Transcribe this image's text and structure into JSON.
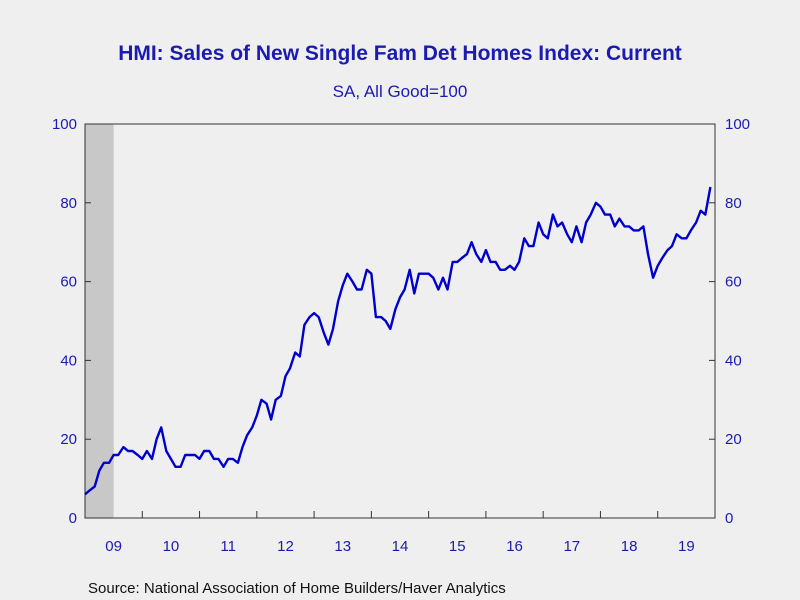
{
  "chart_data": {
    "type": "line",
    "title": "HMI: Sales of New Single Fam Det Homes Index: Current",
    "subtitle": "SA, All Good=100",
    "source": "Source:  National Association of Home Builders/Haver Analytics",
    "ylim": [
      0,
      100
    ],
    "yticks": [
      0,
      20,
      40,
      60,
      80,
      100
    ],
    "ytick_labels": [
      "0",
      "20",
      "40",
      "60",
      "80",
      "100"
    ],
    "xlim": [
      2009.0,
      2020.0
    ],
    "xtick_labels": [
      "09",
      "10",
      "11",
      "12",
      "13",
      "14",
      "15",
      "16",
      "17",
      "18",
      "19"
    ],
    "recession": {
      "start": 2009.0,
      "end": 2009.5,
      "color": "#c8c8c8"
    },
    "line_color": "#0000cc",
    "grid": false,
    "series": [
      {
        "x": [
          2009.0,
          2009.08,
          2009.17,
          2009.25,
          2009.33,
          2009.42,
          2009.5,
          2009.58,
          2009.67,
          2009.75,
          2009.83,
          2009.92,
          2010.0,
          2010.08,
          2010.17,
          2010.25,
          2010.33,
          2010.42,
          2010.5,
          2010.58,
          2010.67,
          2010.75,
          2010.83,
          2010.92,
          2011.0,
          2011.08,
          2011.17,
          2011.25,
          2011.33,
          2011.42,
          2011.5,
          2011.58,
          2011.67,
          2011.75,
          2011.83,
          2011.92,
          2012.0,
          2012.08,
          2012.17,
          2012.25,
          2012.33,
          2012.42,
          2012.5,
          2012.58,
          2012.67,
          2012.75,
          2012.83,
          2012.92,
          2013.0,
          2013.08,
          2013.17,
          2013.25,
          2013.33,
          2013.42,
          2013.5,
          2013.58,
          2013.67,
          2013.75,
          2013.83,
          2013.92,
          2014.0,
          2014.08,
          2014.17,
          2014.25,
          2014.33,
          2014.42,
          2014.5,
          2014.58,
          2014.67,
          2014.75,
          2014.83,
          2014.92,
          2015.0,
          2015.08,
          2015.17,
          2015.25,
          2015.33,
          2015.42,
          2015.5,
          2015.58,
          2015.67,
          2015.75,
          2015.83,
          2015.92,
          2016.0,
          2016.08,
          2016.17,
          2016.25,
          2016.33,
          2016.42,
          2016.5,
          2016.58,
          2016.67,
          2016.75,
          2016.83,
          2016.92,
          2017.0,
          2017.08,
          2017.17,
          2017.25,
          2017.33,
          2017.42,
          2017.5,
          2017.58,
          2017.67,
          2017.75,
          2017.83,
          2017.92,
          2018.0,
          2018.08,
          2018.17,
          2018.25,
          2018.33,
          2018.42,
          2018.5,
          2018.58,
          2018.67,
          2018.75,
          2018.83,
          2018.92,
          2019.0,
          2019.08,
          2019.17,
          2019.25,
          2019.33,
          2019.42,
          2019.5,
          2019.58,
          2019.67,
          2019.75,
          2019.83,
          2019.92
        ],
        "values": [
          6,
          7,
          8,
          12,
          14,
          14,
          16,
          16,
          18,
          17,
          17,
          16,
          15,
          17,
          15,
          20,
          23,
          17,
          15,
          13,
          13,
          16,
          16,
          16,
          15,
          17,
          17,
          15,
          15,
          13,
          15,
          15,
          14,
          18,
          21,
          23,
          26,
          30,
          29,
          25,
          30,
          31,
          36,
          38,
          42,
          41,
          49,
          51,
          52,
          51,
          47,
          44,
          48,
          55,
          59,
          62,
          60,
          58,
          58,
          63,
          62,
          51,
          51,
          50,
          48,
          53,
          56,
          58,
          63,
          57,
          62,
          62,
          62,
          61,
          58,
          61,
          58,
          65,
          65,
          66,
          67,
          70,
          67,
          65,
          68,
          65,
          65,
          63,
          63,
          64,
          63,
          65,
          71,
          69,
          69,
          75,
          72,
          71,
          77,
          74,
          75,
          72,
          70,
          74,
          70,
          75,
          77,
          80,
          79,
          77,
          77,
          74,
          76,
          74,
          74,
          73,
          73,
          74,
          67,
          61,
          64,
          66,
          68,
          69,
          72,
          71,
          71,
          73,
          75,
          78,
          77,
          84
        ]
      }
    ]
  }
}
